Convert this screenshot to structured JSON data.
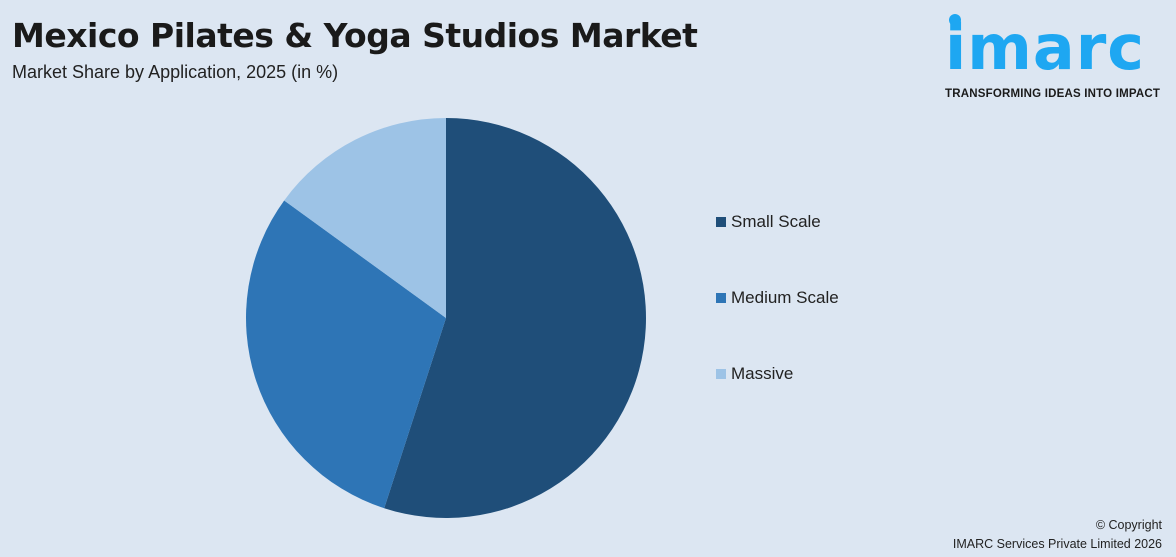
{
  "header": {
    "title": "Mexico Pilates & Yoga Studios Market",
    "subtitle": "Market Share by Application, 2025 (in %)"
  },
  "logo": {
    "word": "imarc",
    "tagline": "TRANSFORMING IDEAS INTO IMPACT",
    "color": "#1ea7f2"
  },
  "chart_data": {
    "type": "pie",
    "title": "Mexico Pilates & Yoga Studios Market",
    "subtitle": "Market Share by Application, 2025 (in %)",
    "categories": [
      "Small Scale",
      "Medium Scale",
      "Massive"
    ],
    "values": [
      55,
      30,
      15
    ],
    "colors": [
      "#1f4e79",
      "#2e75b6",
      "#9dc3e6"
    ],
    "start_angle": "12 o'clock, clockwise",
    "legend_position": "right"
  },
  "footer": {
    "copyright": "© Copyright",
    "company": "IMARC Services Private Limited 2026"
  }
}
